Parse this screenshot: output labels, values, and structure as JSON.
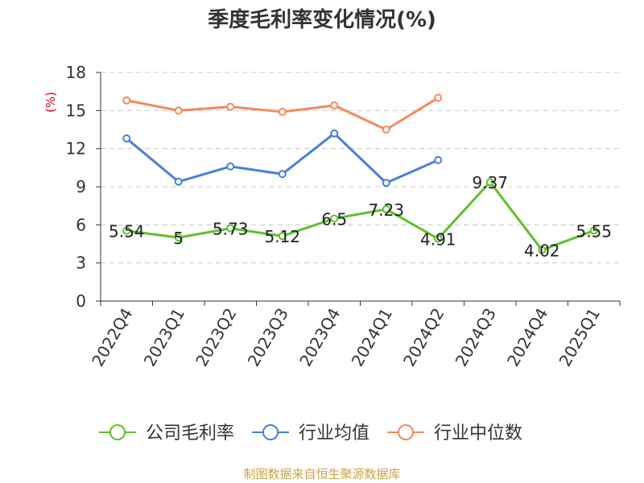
{
  "chart_data": {
    "type": "line",
    "title": "季度毛利率变化情况(%)",
    "ylabel": "(%)",
    "xlabel": "",
    "categories": [
      "2022Q4",
      "2023Q1",
      "2023Q2",
      "2023Q3",
      "2023Q4",
      "2024Q1",
      "2024Q2",
      "2024Q3",
      "2024Q4",
      "2025Q1"
    ],
    "ylim": [
      0,
      18
    ],
    "yticks": [
      0,
      3,
      6,
      9,
      12,
      15,
      18
    ],
    "grid": true,
    "legend_position": "bottom",
    "series": [
      {
        "name": "公司毛利率",
        "color": "#5cc22c",
        "values": [
          5.54,
          5,
          5.73,
          5.12,
          6.5,
          7.23,
          4.91,
          9.37,
          4.02,
          5.55
        ],
        "labels": [
          "5.54",
          "5",
          "5.73",
          "5.12",
          "6.5",
          "7.23",
          "4.91",
          "9.37",
          "4.02",
          "5.55"
        ]
      },
      {
        "name": "行业均值",
        "color": "#4a7fdb",
        "values": [
          12.8,
          9.4,
          10.6,
          10.0,
          13.2,
          9.3,
          11.1,
          null,
          null,
          null
        ]
      },
      {
        "name": "行业中位数",
        "color": "#f4895a",
        "values": [
          15.8,
          15.0,
          15.3,
          14.9,
          15.4,
          13.5,
          16.0,
          null,
          null,
          null
        ]
      }
    ]
  },
  "source_note": "制图数据来自恒生聚源数据库"
}
